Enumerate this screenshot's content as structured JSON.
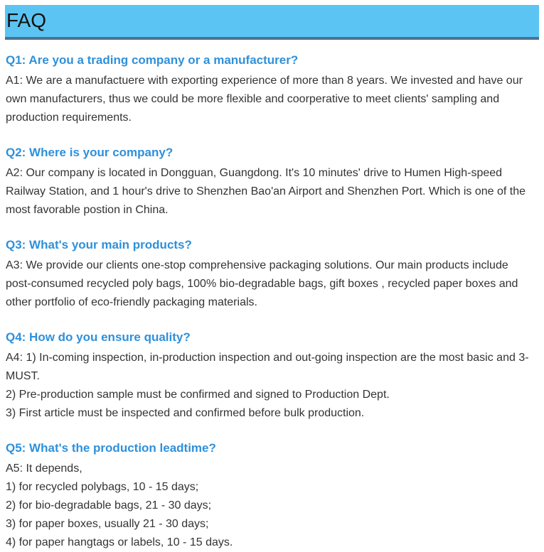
{
  "header": {
    "title": "FAQ"
  },
  "colors": {
    "header_bg": "#5BC4F3",
    "header_border": "#4E7193",
    "question_blue": "#2E90DB",
    "body_text": "#333333",
    "title_text": "#121212"
  },
  "faq_items": [
    {
      "question": "Q1: Are you a trading company or a manufacturer?",
      "paragraphs": [
        "A1: We are a manufactuere with exporting experience of more than 8 years. We invested and have our own manufacturers, thus we could be more flexible and coorperative to meet clients' sampling and production requirements."
      ]
    },
    {
      "question": "Q2: Where is your company?",
      "paragraphs": [
        "A2: Our company is located in Dongguan, Guangdong. It's 10 minutes' drive to Humen High-speed Railway Station, and 1 hour's drive to Shenzhen Bao'an Airport and Shenzhen Port. Which is one of the most favorable postion in China."
      ]
    },
    {
      "question": "Q3: What's your main products?",
      "paragraphs": [
        "A3: We provide our clients one-stop comprehensive packaging solutions. Our main products include post-consumed recycled poly bags, 100% bio-degradable bags, gift boxes , recycled paper boxes and other portfolio of eco-friendly packaging materials."
      ]
    },
    {
      "question": "Q4: How do you ensure quality?",
      "paragraphs": [
        "A4: 1) In-coming inspection, in-production inspection and out-going inspection are the most basic and 3-MUST.",
        "2) Pre-production sample must be confirmed and signed to Production Dept.",
        "3) First article must be inspected and confirmed before bulk production."
      ]
    },
    {
      "question": "Q5: What's the production leadtime?",
      "paragraphs": [
        "A5: It depends,",
        "1) for recycled polybags, 10 - 15 days;",
        "2) for bio-degradable bags, 21 - 30 days;",
        "3) for paper boxes, usually 21 - 30 days;",
        "4) for paper hangtags or labels, 10 - 15 days."
      ]
    }
  ]
}
